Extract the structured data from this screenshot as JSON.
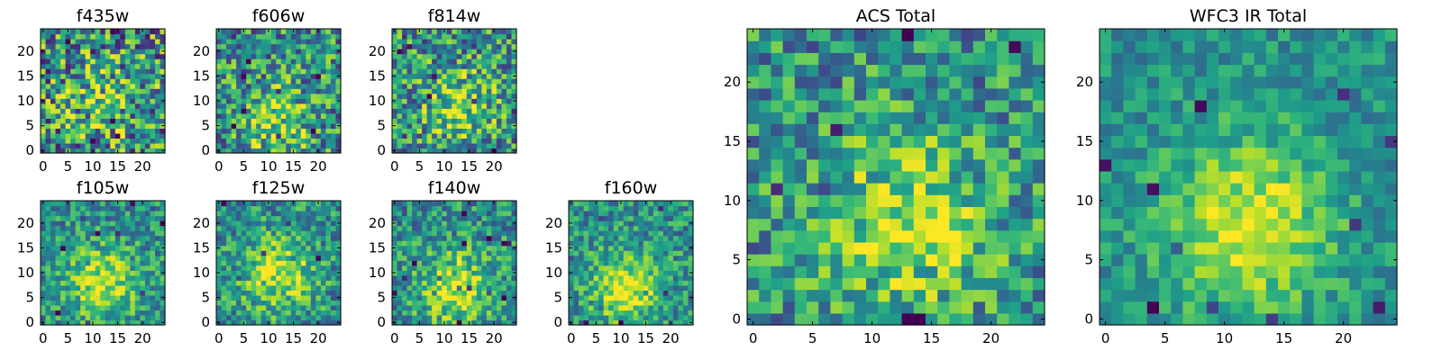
{
  "chart_data": [
    {
      "type": "heatmap",
      "title": "f435w",
      "xlim": [
        0,
        24
      ],
      "ylim": [
        0,
        24
      ],
      "xticks": [
        "0",
        "5",
        "10",
        "15",
        "20"
      ],
      "yticks": [
        "0",
        "5",
        "10",
        "15",
        "20"
      ],
      "colormap": "viridis",
      "hotspot": {
        "x": 12,
        "y": 10
      },
      "noise": 0.9,
      "seed": 11,
      "peak": 0.45
    },
    {
      "type": "heatmap",
      "title": "f606w",
      "xlim": [
        0,
        24
      ],
      "ylim": [
        0,
        24
      ],
      "xticks": [
        "0",
        "5",
        "10",
        "15",
        "20"
      ],
      "yticks": [
        "0",
        "5",
        "10",
        "15",
        "20"
      ],
      "colormap": "viridis",
      "hotspot": {
        "x": 11,
        "y": 6
      },
      "noise": 0.75,
      "seed": 23,
      "peak": 0.7
    },
    {
      "type": "heatmap",
      "title": "f814w",
      "xlim": [
        0,
        24
      ],
      "ylim": [
        0,
        24
      ],
      "xticks": [
        "0",
        "5",
        "10",
        "15",
        "20"
      ],
      "yticks": [
        "0",
        "5",
        "10",
        "15",
        "20"
      ],
      "colormap": "viridis",
      "hotspot": {
        "x": 13,
        "y": 9
      },
      "noise": 0.75,
      "seed": 37,
      "peak": 0.7
    },
    {
      "type": "heatmap",
      "title": "f105w",
      "xlim": [
        0,
        24
      ],
      "ylim": [
        0,
        24
      ],
      "xticks": [
        "0",
        "5",
        "10",
        "15",
        "20"
      ],
      "yticks": [
        "0",
        "5",
        "10",
        "15",
        "20"
      ],
      "colormap": "viridis",
      "hotspot": {
        "x": 12,
        "y": 8
      },
      "noise": 0.5,
      "seed": 41,
      "peak": 0.9
    },
    {
      "type": "heatmap",
      "title": "f125w",
      "xlim": [
        0,
        24
      ],
      "ylim": [
        0,
        24
      ],
      "xticks": [
        "0",
        "5",
        "10",
        "15",
        "20"
      ],
      "yticks": [
        "0",
        "5",
        "10",
        "15",
        "20"
      ],
      "colormap": "viridis",
      "hotspot": {
        "x": 12,
        "y": 10
      },
      "noise": 0.55,
      "seed": 53,
      "peak": 0.9
    },
    {
      "type": "heatmap",
      "title": "f140w",
      "xlim": [
        0,
        24
      ],
      "ylim": [
        0,
        24
      ],
      "xticks": [
        "0",
        "5",
        "10",
        "15",
        "20"
      ],
      "yticks": [
        "0",
        "5",
        "10",
        "15",
        "20"
      ],
      "colormap": "viridis",
      "hotspot": {
        "x": 12,
        "y": 7
      },
      "noise": 0.55,
      "seed": 67,
      "peak": 0.9
    },
    {
      "type": "heatmap",
      "title": "f160w",
      "xlim": [
        0,
        24
      ],
      "ylim": [
        0,
        24
      ],
      "xticks": [
        "0",
        "5",
        "10",
        "15",
        "20"
      ],
      "yticks": [
        "0",
        "5",
        "10",
        "15",
        "20"
      ],
      "colormap": "viridis",
      "hotspot": {
        "x": 11,
        "y": 7
      },
      "noise": 0.5,
      "seed": 79,
      "peak": 0.95
    },
    {
      "type": "heatmap",
      "title": "ACS Total",
      "xlim": [
        0,
        24
      ],
      "ylim": [
        0,
        24
      ],
      "xticks": [
        "0",
        "5",
        "10",
        "15",
        "20"
      ],
      "yticks": [
        "0",
        "5",
        "10",
        "15",
        "20"
      ],
      "colormap": "viridis",
      "hotspot": {
        "x": 13,
        "y": 8
      },
      "noise": 0.6,
      "seed": 97,
      "peak": 0.85
    },
    {
      "type": "heatmap",
      "title": "WFC3 IR Total",
      "xlim": [
        0,
        24
      ],
      "ylim": [
        0,
        24
      ],
      "xticks": [
        "0",
        "5",
        "10",
        "15",
        "20"
      ],
      "yticks": [
        "0",
        "5",
        "10",
        "15",
        "20"
      ],
      "colormap": "viridis",
      "hotspot": {
        "x": 12,
        "y": 8
      },
      "noise": 0.35,
      "seed": 131,
      "peak": 1.0
    }
  ]
}
